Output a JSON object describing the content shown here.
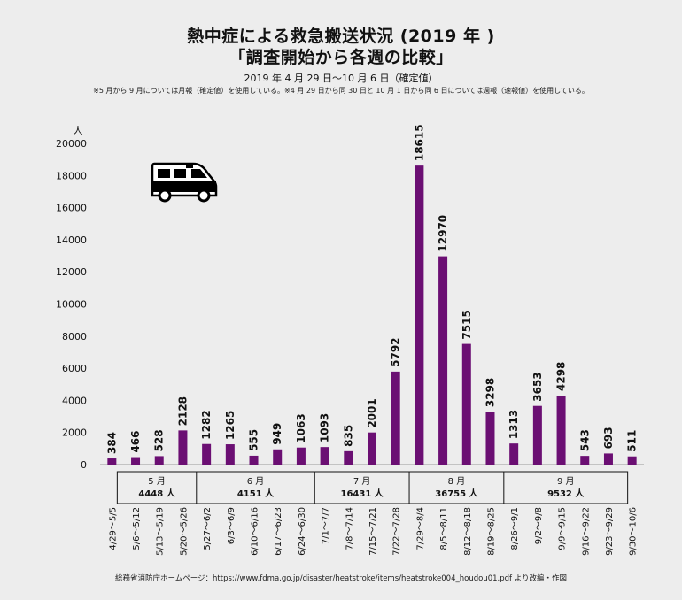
{
  "title_line1": "熱中症による救急搬送状況 (2019 年 )",
  "title_line2": "「調査開始から各週の比較」",
  "period": "2019 年 4 月 29 日〜10 月 6 日（確定値）",
  "note": "※5 月から 9 月については月報（確定値）を使用している。※4 月 29 日から同 30 日と 10 月 1 日から同 6 日については週報（速報値）を使用している。",
  "source": "総務省消防庁ホームページ：https://www.fdma.go.jp/disaster/heatstroke/items/heatstroke004_houdou01.pdf より改編・作図",
  "icon": "ambulance-icon",
  "colors": {
    "bar": "#6b0f73",
    "background": "#ededed"
  },
  "chart_data": {
    "type": "bar",
    "ylabel": "人",
    "ylim": [
      0,
      20000
    ],
    "yticks": [
      0,
      2000,
      4000,
      6000,
      8000,
      10000,
      12000,
      14000,
      16000,
      18000,
      20000
    ],
    "grid": false,
    "categories": [
      "4/29〜5/5",
      "5/6〜5/12",
      "5/13〜5/19",
      "5/20〜5/26",
      "5/27〜6/2",
      "6/3〜6/9",
      "6/10〜6/16",
      "6/17〜6/23",
      "6/24〜6/30",
      "7/1〜7/7",
      "7/8〜7/14",
      "7/15〜7/21",
      "7/22〜7/28",
      "7/29〜8/4",
      "8/5〜8/11",
      "8/12〜8/18",
      "8/19〜8/25",
      "8/26〜9/1",
      "9/2〜9/8",
      "9/9〜9/15",
      "9/16〜9/22",
      "9/23〜9/29",
      "9/30〜10/6"
    ],
    "values": [
      384,
      466,
      528,
      2128,
      1282,
      1265,
      555,
      949,
      1063,
      1093,
      835,
      2001,
      5792,
      18615,
      12970,
      7515,
      3298,
      1313,
      3653,
      4298,
      543,
      693,
      511
    ],
    "monthly_totals": [
      {
        "month": "5 月",
        "total": "4448 人"
      },
      {
        "month": "6 月",
        "total": "4151 人"
      },
      {
        "month": "7 月",
        "total": "16431 人"
      },
      {
        "month": "8 月",
        "total": "36755 人"
      },
      {
        "month": "9 月",
        "total": "9532 人"
      }
    ]
  }
}
